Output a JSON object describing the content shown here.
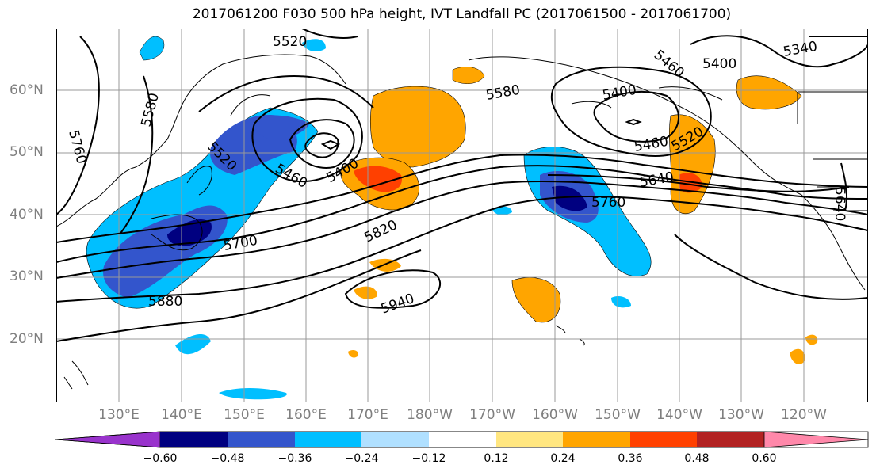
{
  "title": "2017061200 F030 500 hPa height, IVT Landfall PC (2017061500 - 2017061700)",
  "lat_labels": [
    "60°N",
    "50°N",
    "40°N",
    "30°N",
    "20°N"
  ],
  "lon_labels": [
    "130°E",
    "140°E",
    "150°E",
    "160°E",
    "170°E",
    "180°W",
    "170°W",
    "160°W",
    "150°W",
    "140°W",
    "130°W",
    "120°W"
  ],
  "contour_labels": [
    "5520",
    "5580",
    "5760",
    "5520",
    "5460",
    "5400",
    "5700",
    "5820",
    "5880",
    "5940",
    "5580",
    "5460",
    "5400",
    "5460",
    "5400",
    "5520",
    "5640",
    "5760",
    "5340",
    "5640"
  ],
  "colorbar": {
    "ticks": [
      "−0.60",
      "−0.48",
      "−0.36",
      "−0.24",
      "−0.12",
      "0.12",
      "0.24",
      "0.36",
      "0.48",
      "0.60"
    ],
    "colors": [
      "#9933cc",
      "#000080",
      "#3355cc",
      "#00bfff",
      "#b0e0ff",
      "#ffffff",
      "#ffe680",
      "#ffa500",
      "#ff4000",
      "#b22222",
      "#ff88aa"
    ]
  }
}
